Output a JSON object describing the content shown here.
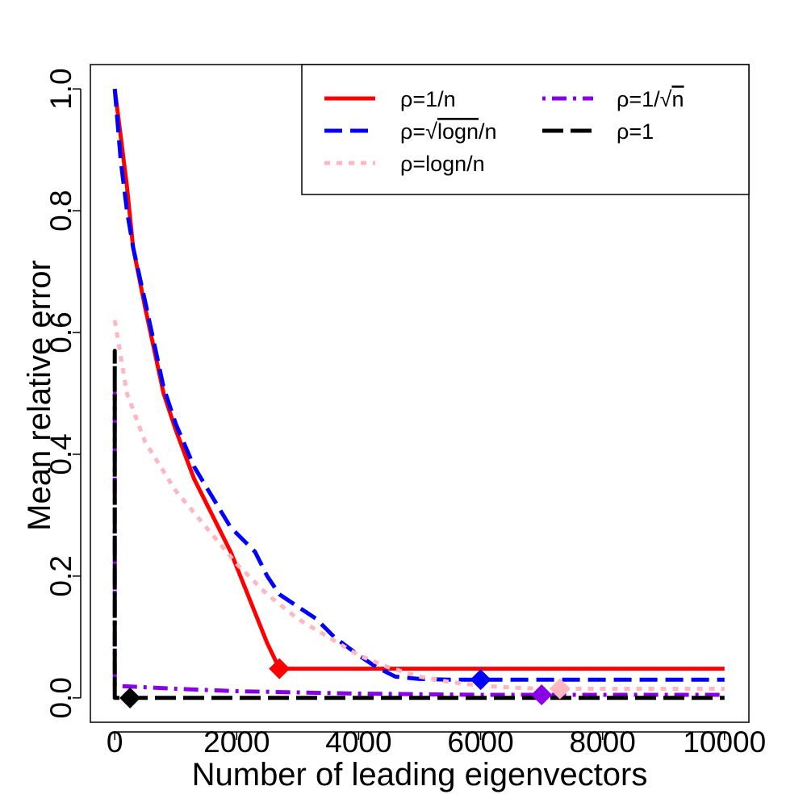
{
  "chart_data": {
    "type": "line",
    "title": "",
    "xlabel": "Number of leading eigenvectors",
    "ylabel": "Mean relative error",
    "xlim": [
      -400,
      10400
    ],
    "ylim": [
      -0.04,
      1.04
    ],
    "xticks": [
      0,
      2000,
      4000,
      6000,
      8000,
      10000
    ],
    "xtick_labels": [
      "0",
      "2000",
      "4000",
      "6000",
      "8000",
      "10000"
    ],
    "yticks": [
      0.0,
      0.2,
      0.4,
      0.6,
      0.8,
      1.0
    ],
    "ytick_labels": [
      "0.0",
      "0.2",
      "0.4",
      "0.6",
      "0.8",
      "1.0"
    ],
    "legend_position": "top-right",
    "series": [
      {
        "name": "ρ=1/n",
        "legend": {
          "pre": "ρ=1/n",
          "sqrt": "",
          "post": ""
        },
        "color": "#ff0000",
        "style": "solid",
        "x": [
          0,
          100,
          200,
          300,
          500,
          800,
          1000,
          1300,
          1600,
          1900,
          2100,
          2300,
          2500,
          2700,
          3000,
          4000,
          6000,
          8000,
          10000
        ],
        "y": [
          1.0,
          0.92,
          0.84,
          0.74,
          0.64,
          0.5,
          0.44,
          0.36,
          0.3,
          0.24,
          0.19,
          0.14,
          0.09,
          0.048,
          0.048,
          0.048,
          0.048,
          0.048,
          0.048
        ],
        "marker": {
          "x": 2700,
          "y": 0.048
        }
      },
      {
        "name": "ρ=√logn/n",
        "legend": {
          "pre": "ρ=",
          "sqrt": "logn",
          "post": "/n"
        },
        "color": "#0000ff",
        "style": "dashed",
        "x": [
          0,
          100,
          200,
          300,
          500,
          800,
          1000,
          1300,
          1600,
          1900,
          2100,
          2300,
          2500,
          2700,
          3000,
          3300,
          3600,
          4000,
          4300,
          4600,
          5000,
          5500,
          6000,
          8000,
          10000
        ],
        "y": [
          1.0,
          0.88,
          0.8,
          0.74,
          0.65,
          0.51,
          0.45,
          0.38,
          0.33,
          0.28,
          0.26,
          0.24,
          0.2,
          0.17,
          0.15,
          0.13,
          0.1,
          0.07,
          0.05,
          0.035,
          0.031,
          0.03,
          0.03,
          0.03,
          0.03
        ],
        "marker": {
          "x": 6000,
          "y": 0.03
        }
      },
      {
        "name": "ρ=logn/n",
        "legend": {
          "pre": "ρ=logn/n",
          "sqrt": "",
          "post": ""
        },
        "color": "#ffb6c1",
        "style": "dotted",
        "x": [
          0,
          200,
          500,
          1000,
          1500,
          2000,
          2500,
          3000,
          3500,
          4000,
          4500,
          5000,
          5500,
          6000,
          6500,
          7000,
          7300,
          8000,
          10000
        ],
        "y": [
          0.62,
          0.5,
          0.42,
          0.34,
          0.28,
          0.22,
          0.17,
          0.13,
          0.1,
          0.07,
          0.05,
          0.035,
          0.026,
          0.02,
          0.017,
          0.015,
          0.015,
          0.015,
          0.015
        ],
        "marker": {
          "x": 7300,
          "y": 0.015
        }
      },
      {
        "name": "ρ=1/√n",
        "legend": {
          "pre": "ρ=1/",
          "sqrt": "n",
          "post": ""
        },
        "color": "#8a00e6",
        "style": "dotdash",
        "x": [
          0,
          0,
          0,
          200,
          1000,
          2000,
          3000,
          4000,
          5000,
          6000,
          7000,
          8000,
          10000
        ],
        "y": [
          0.02,
          0.5,
          0.02,
          0.019,
          0.015,
          0.011,
          0.009,
          0.007,
          0.006,
          0.005,
          0.005,
          0.005,
          0.005
        ],
        "marker": {
          "x": 7000,
          "y": 0.005
        }
      },
      {
        "name": "ρ=1",
        "legend": {
          "pre": "ρ=1",
          "sqrt": "",
          "post": ""
        },
        "color": "#000000",
        "style": "longdash",
        "x": [
          0,
          0,
          0,
          250,
          10000
        ],
        "y": [
          0.0,
          0.57,
          0.0,
          0.0,
          0.0
        ],
        "marker": {
          "x": 250,
          "y": 0.0
        }
      }
    ]
  }
}
